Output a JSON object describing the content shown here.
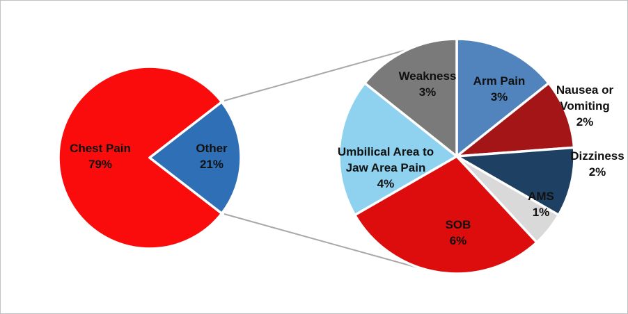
{
  "page": {
    "background": "#FFFFFF",
    "border_color": "#BFC3C5"
  },
  "chart_data": {
    "type": "pie",
    "variant": "pie-of-pie",
    "title": "",
    "legend": "none",
    "label_font_size": 17,
    "label_line_height": 23,
    "label_color": "#111111",
    "slice_border_color": "#FFFFFF",
    "slice_border_width": 3.5,
    "connector_color": "#A8A8A8",
    "connector_width": 2,
    "primary_pie": {
      "center": [
        214,
        226
      ],
      "radius": 131,
      "start_angle_deg": 127.8,
      "value_total": 100,
      "slices": [
        {
          "label": "Chest Pain",
          "value": 79,
          "pct_label": "79%",
          "color": "#FB0C0C",
          "label_lines": [
            "Chest Pain",
            "79%"
          ],
          "label_pos": [
            143,
            212
          ]
        },
        {
          "label": "Other",
          "value": 21,
          "pct_label": "21%",
          "color": "#2E6FB5",
          "label_lines": [
            "Other",
            "21%"
          ],
          "label_pos": [
            303,
            212
          ]
        }
      ]
    },
    "secondary_pie": {
      "center": [
        655,
        224
      ],
      "radius": 169,
      "start_angle_deg": 0,
      "value_total": 21,
      "slices": [
        {
          "label": "Arm Pain",
          "value": 3,
          "pct_label": "3%",
          "color": "#5183BC",
          "label_lines": [
            "Arm Pain",
            "3%"
          ],
          "label_pos": [
            716,
            115
          ]
        },
        {
          "label": "Nausea or Vomiting",
          "value": 2,
          "pct_label": "2%",
          "color": "#A41517",
          "label_lines": [
            "Nausea or",
            "Vomiting",
            "2%"
          ],
          "label_pos": [
            839,
            128
          ]
        },
        {
          "label": "Dizziness",
          "value": 2,
          "pct_label": "2%",
          "color": "#1E4163",
          "label_lines": [
            "Dizziness",
            "2%"
          ],
          "label_pos": [
            857,
            223
          ]
        },
        {
          "label": "AMS",
          "value": 1,
          "pct_label": "1%",
          "color": "#D9D9D9",
          "label_lines": [
            "AMS",
            "1%"
          ],
          "label_pos": [
            776,
            281
          ]
        },
        {
          "label": "SOB",
          "value": 6,
          "pct_label": "6%",
          "color": "#DE0D0D",
          "label_lines": [
            "SOB",
            "6%"
          ],
          "label_pos": [
            657,
            322
          ]
        },
        {
          "label": "Umbilical Area to Jaw Area Pain",
          "value": 4,
          "pct_label": "4%",
          "color": "#8FD2F0",
          "label_lines": [
            "Umbilical Area to",
            "Jaw Area Pain",
            "4%"
          ],
          "label_pos": [
            553,
            217
          ]
        },
        {
          "label": "Weakness",
          "value": 3,
          "pct_label": "3%",
          "color": "#7A7A7A",
          "label_lines": [
            "Weakness",
            "3%"
          ],
          "label_pos": [
            613,
            108
          ]
        }
      ]
    },
    "connector_lines": [
      {
        "from": [
          321,
          144
        ],
        "to": [
          600,
          66
        ]
      },
      {
        "from": [
          321,
          307
        ],
        "to": [
          598,
          384
        ]
      }
    ]
  }
}
